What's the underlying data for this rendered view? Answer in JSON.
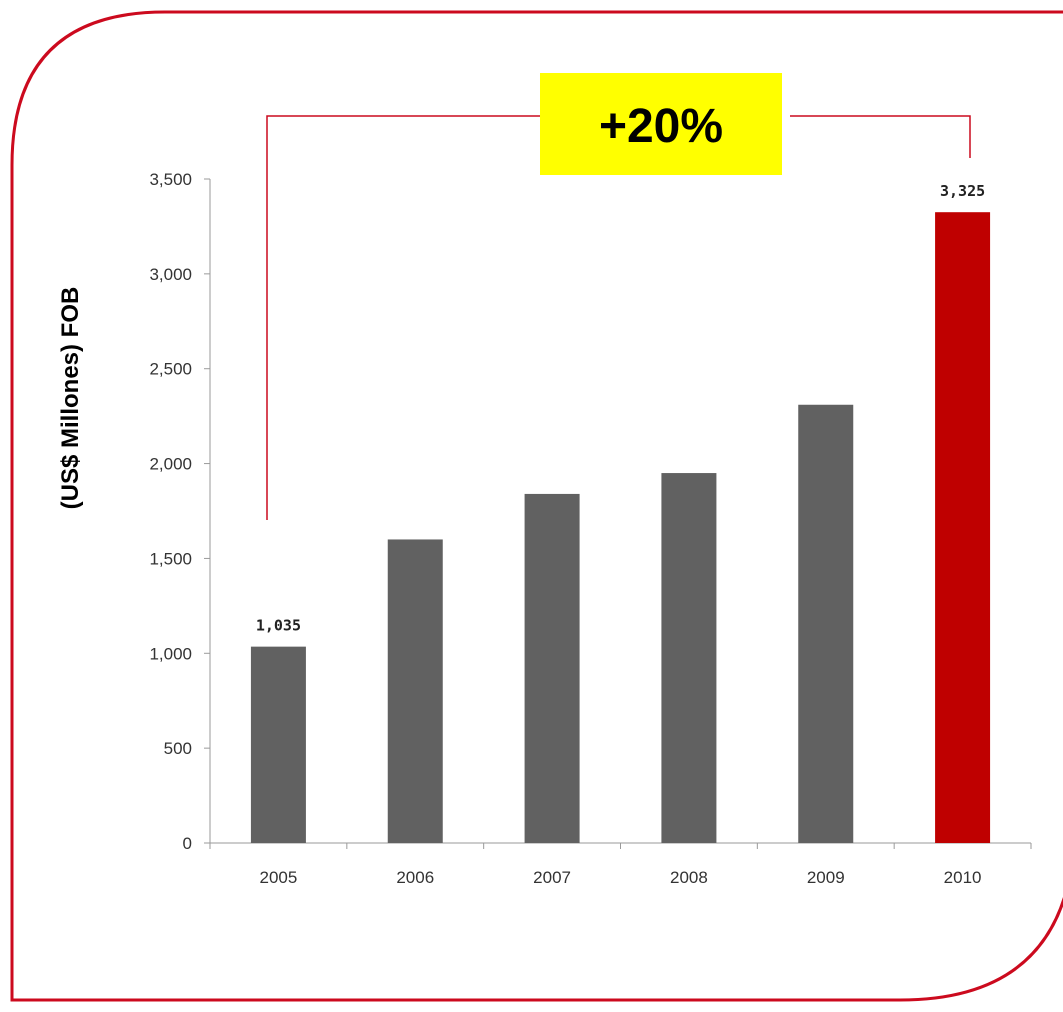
{
  "colors": {
    "frame": "#cc0a1e",
    "bar": "#616161",
    "highlight_bar": "#bf0000",
    "callout_bg": "#ffff00",
    "connector": "#cc0a1e",
    "axis": "#9a9a9a"
  },
  "callout": {
    "text": "+20%"
  },
  "chart_data": {
    "type": "bar",
    "title": "",
    "xlabel": "",
    "ylabel": "(US$ Millones) FOB",
    "categories": [
      "2005",
      "2006",
      "2007",
      "2008",
      "2009",
      "2010"
    ],
    "values": [
      1035,
      1600,
      1840,
      1950,
      2310,
      3325
    ],
    "ylim": [
      0,
      3500
    ],
    "yticks": [
      0,
      500,
      1000,
      1500,
      2000,
      2500,
      3000,
      3500
    ],
    "ytick_labels": [
      "0",
      "500",
      "1,000",
      "1,500",
      "2,000",
      "2,500",
      "3,000",
      "3,500"
    ],
    "data_labels": [
      {
        "category": "2005",
        "text": "1,035"
      },
      {
        "category": "2010",
        "text": "3,325"
      }
    ],
    "highlight_category": "2010",
    "grid": false,
    "legend": "none"
  }
}
